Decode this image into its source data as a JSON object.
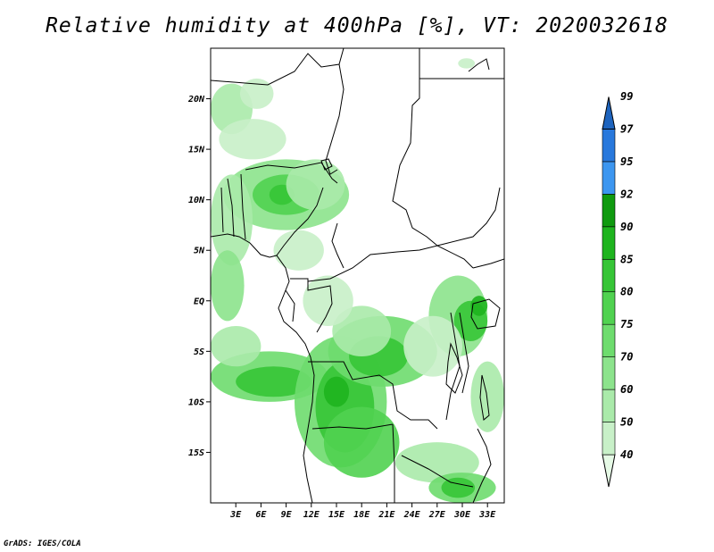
{
  "title": "Relative humidity at 400hPa [%], VT: 2020032618",
  "credit": "GrADS: IGES/COLA",
  "map": {
    "lon_range": [
      0,
      35
    ],
    "lat_range": [
      -20,
      25
    ],
    "lat_ticks": [
      {
        "value": 20,
        "label": "20N"
      },
      {
        "value": 15,
        "label": "15N"
      },
      {
        "value": 10,
        "label": "10N"
      },
      {
        "value": 5,
        "label": "5N"
      },
      {
        "value": 0,
        "label": "EQ"
      },
      {
        "value": -5,
        "label": "5S"
      },
      {
        "value": -10,
        "label": "10S"
      },
      {
        "value": -15,
        "label": "15S"
      }
    ],
    "lon_ticks": [
      {
        "value": 3,
        "label": "3E"
      },
      {
        "value": 6,
        "label": "6E"
      },
      {
        "value": 9,
        "label": "9E"
      },
      {
        "value": 12,
        "label": "12E"
      },
      {
        "value": 15,
        "label": "15E"
      },
      {
        "value": 18,
        "label": "18E"
      },
      {
        "value": 21,
        "label": "21E"
      },
      {
        "value": 24,
        "label": "24E"
      },
      {
        "value": 27,
        "label": "27E"
      },
      {
        "value": 30,
        "label": "30E"
      },
      {
        "value": 33,
        "label": "33E"
      }
    ]
  },
  "colorbar": {
    "bins": [
      {
        "from": 40,
        "to": 50,
        "color": "#e6fae6"
      },
      {
        "from": 50,
        "to": 60,
        "color": "#c8f0c8"
      },
      {
        "from": 60,
        "to": 70,
        "color": "#aaeaaa"
      },
      {
        "from": 70,
        "to": 75,
        "color": "#8ce38c"
      },
      {
        "from": 75,
        "to": 80,
        "color": "#6edc6e"
      },
      {
        "from": 80,
        "to": 85,
        "color": "#50d250"
      },
      {
        "from": 85,
        "to": 90,
        "color": "#36c536"
      },
      {
        "from": 90,
        "to": 92,
        "color": "#1eb41e"
      },
      {
        "from": 92,
        "to": 95,
        "color": "#0f9a0f"
      },
      {
        "from": 95,
        "to": 97,
        "color": "#3c96f0"
      },
      {
        "from": 97,
        "to": 99,
        "color": "#2878dc"
      },
      {
        "from": 99,
        "to": 100,
        "color": "#1e64be"
      }
    ],
    "labels": [
      "40",
      "50",
      "60",
      "70",
      "75",
      "80",
      "85",
      "90",
      "92",
      "95",
      "97",
      "99"
    ]
  },
  "humidity_field": [
    {
      "lon": 2.5,
      "lat": 19.0,
      "rx": 2.5,
      "ry": 2.5,
      "level": 60
    },
    {
      "lon": 5.5,
      "lat": 20.5,
      "rx": 2.0,
      "ry": 1.5,
      "level": 50
    },
    {
      "lon": 5.0,
      "lat": 16.0,
      "rx": 4.0,
      "ry": 2.0,
      "level": 50
    },
    {
      "lon": 9.0,
      "lat": 10.5,
      "rx": 7.5,
      "ry": 3.5,
      "level": 70
    },
    {
      "lon": 9.0,
      "lat": 10.5,
      "rx": 4.0,
      "ry": 2.0,
      "level": 80
    },
    {
      "lon": 8.5,
      "lat": 10.5,
      "rx": 1.5,
      "ry": 1.0,
      "level": 85
    },
    {
      "lon": 12.5,
      "lat": 11.5,
      "rx": 3.5,
      "ry": 2.5,
      "level": 60
    },
    {
      "lon": 2.5,
      "lat": 8.0,
      "rx": 2.5,
      "ry": 4.5,
      "level": 60
    },
    {
      "lon": 2.0,
      "lat": 1.5,
      "rx": 2.0,
      "ry": 3.5,
      "level": 70
    },
    {
      "lon": 10.5,
      "lat": 5.0,
      "rx": 3.0,
      "ry": 2.0,
      "level": 50
    },
    {
      "lon": 7.0,
      "lat": -7.5,
      "rx": 7.0,
      "ry": 2.5,
      "level": 75
    },
    {
      "lon": 7.5,
      "lat": -8.0,
      "rx": 4.5,
      "ry": 1.5,
      "level": 85
    },
    {
      "lon": 3.0,
      "lat": -4.5,
      "rx": 3.0,
      "ry": 2.0,
      "level": 60
    },
    {
      "lon": 15.5,
      "lat": -10.0,
      "rx": 5.5,
      "ry": 6.5,
      "level": 75
    },
    {
      "lon": 16.0,
      "lat": -10.5,
      "rx": 3.5,
      "ry": 4.5,
      "level": 85
    },
    {
      "lon": 15.0,
      "lat": -9.0,
      "rx": 1.5,
      "ry": 1.5,
      "level": 90
    },
    {
      "lon": 18.0,
      "lat": -14.0,
      "rx": 4.5,
      "ry": 3.5,
      "level": 80
    },
    {
      "lon": 20.5,
      "lat": -5.0,
      "rx": 6.5,
      "ry": 3.5,
      "level": 75
    },
    {
      "lon": 20.0,
      "lat": -5.5,
      "rx": 3.5,
      "ry": 2.0,
      "level": 85
    },
    {
      "lon": 18.0,
      "lat": -3.0,
      "rx": 3.5,
      "ry": 2.5,
      "level": 60
    },
    {
      "lon": 14.0,
      "lat": 0.0,
      "rx": 3.0,
      "ry": 2.5,
      "level": 50
    },
    {
      "lon": 29.5,
      "lat": -1.5,
      "rx": 3.5,
      "ry": 4.0,
      "level": 70
    },
    {
      "lon": 31.0,
      "lat": -2.0,
      "rx": 2.0,
      "ry": 2.0,
      "level": 85
    },
    {
      "lon": 32.0,
      "lat": -0.5,
      "rx": 1.0,
      "ry": 1.0,
      "level": 90
    },
    {
      "lon": 26.5,
      "lat": -4.5,
      "rx": 3.5,
      "ry": 3.0,
      "level": 50
    },
    {
      "lon": 27.0,
      "lat": -16.0,
      "rx": 5.0,
      "ry": 2.0,
      "level": 60
    },
    {
      "lon": 30.0,
      "lat": -18.5,
      "rx": 4.0,
      "ry": 1.5,
      "level": 75
    },
    {
      "lon": 29.5,
      "lat": -18.5,
      "rx": 2.0,
      "ry": 1.0,
      "level": 85
    },
    {
      "lon": 33.0,
      "lat": -9.5,
      "rx": 2.0,
      "ry": 3.5,
      "level": 60
    },
    {
      "lon": 30.5,
      "lat": 23.5,
      "rx": 1.0,
      "ry": 0.5,
      "level": 50
    }
  ]
}
